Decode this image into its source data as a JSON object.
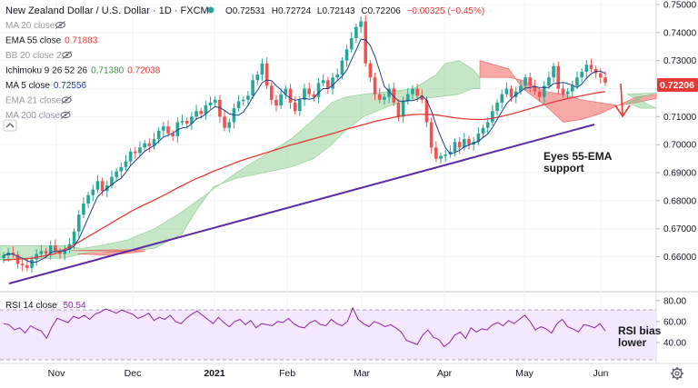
{
  "header": {
    "symbol": "New Zealand Dollar / U.S. Dollar · 1D · FXCM",
    "ohlc": {
      "o_label": "O",
      "o": "0.72531",
      "h_label": "H",
      "h": "0.72724",
      "l_label": "L",
      "l": "0.72143",
      "c_label": "C",
      "c": "0.72206",
      "change": "−0.00325 (−0.45%)"
    }
  },
  "indicators": [
    {
      "label": "MA 20 close",
      "values": [],
      "hidden": true
    },
    {
      "label": "EMA 55 close",
      "values": [
        "0.71883"
      ],
      "color": "#e53935"
    },
    {
      "label": "BB 20 close 2",
      "values": [],
      "hidden": true
    },
    {
      "label": "Ichimoku 9 26 52 26",
      "values": [
        "0.71380",
        "0.72038"
      ],
      "colors": [
        "#388e3c",
        "#e53935"
      ]
    },
    {
      "label": "MA 5 close",
      "values": [
        "0.72556"
      ],
      "color": "#1e3f8f"
    },
    {
      "label": "EMA 21 close",
      "values": [],
      "hidden": true
    },
    {
      "label": "MA 200 close",
      "values": [],
      "hidden": true
    }
  ],
  "price_axis": {
    "ticks": [
      "0.75000",
      "0.74000",
      "0.73000",
      "0.72000",
      "0.71000",
      "0.70000",
      "0.69000",
      "0.68000",
      "0.67000",
      "0.66000"
    ],
    "current_price": "0.72206",
    "current_color": "#e53935"
  },
  "rsi": {
    "label": "RSI 14 close",
    "value": "50.54",
    "color": "#8e24aa",
    "ticks": [
      "80.00",
      "60.00",
      "40.00"
    ],
    "band": [
      30,
      70
    ],
    "series": [
      58,
      57,
      52,
      54,
      49,
      56,
      53,
      51,
      44,
      55,
      63,
      61,
      59,
      65,
      63,
      66,
      62,
      67,
      69,
      72,
      70,
      68,
      71,
      69,
      67,
      63,
      65,
      68,
      61,
      64,
      62,
      66,
      60,
      58,
      63,
      67,
      70,
      66,
      62,
      58,
      64,
      59,
      55,
      60,
      62,
      57,
      61,
      54,
      58,
      57,
      56,
      60,
      59,
      63,
      58,
      55,
      54,
      59,
      61,
      57,
      56,
      62,
      58,
      56,
      60,
      73,
      62,
      58,
      55,
      60,
      58,
      55,
      57,
      54,
      50,
      42,
      40,
      38,
      47,
      52,
      45,
      43,
      36,
      40,
      47,
      50,
      44,
      54,
      50,
      53,
      52,
      57,
      59,
      56,
      61,
      58,
      62,
      66,
      60,
      52,
      55,
      53,
      49,
      58,
      62,
      55,
      53,
      50,
      57,
      56,
      54,
      58,
      51
    ]
  },
  "annotations": {
    "support_text": [
      "Eyes 55-EMA",
      "support"
    ],
    "rsi_text": [
      "RSI bias",
      "lower"
    ]
  },
  "time_axis": {
    "labels": [
      "Nov",
      "Dec",
      "2021",
      "Feb",
      "Mar",
      "Apr",
      "May",
      "Jun"
    ]
  },
  "chart_data": {
    "type": "candlestick",
    "title": "New Zealand Dollar / U.S. Dollar · 1D · FXCM",
    "ylim": [
      0.655,
      0.75
    ],
    "rsi_ylim": [
      20,
      85
    ],
    "close": [
      0.6605,
      0.6615,
      0.6608,
      0.6575,
      0.657,
      0.656,
      0.659,
      0.661,
      0.662,
      0.6612,
      0.664,
      0.662,
      0.661,
      0.6625,
      0.6645,
      0.669,
      0.675,
      0.679,
      0.682,
      0.684,
      0.687,
      0.6835,
      0.6855,
      0.6885,
      0.6905,
      0.692,
      0.694,
      0.6975,
      0.697,
      0.699,
      0.7005,
      0.6995,
      0.702,
      0.705,
      0.7065,
      0.704,
      0.703,
      0.708,
      0.7085,
      0.7075,
      0.71,
      0.712,
      0.711,
      0.714,
      0.715,
      0.716,
      0.71,
      0.706,
      0.708,
      0.713,
      0.7155,
      0.716,
      0.7175,
      0.723,
      0.725,
      0.729,
      0.721,
      0.716,
      0.714,
      0.718,
      0.72,
      0.715,
      0.712,
      0.716,
      0.72,
      0.718,
      0.717,
      0.722,
      0.723,
      0.72,
      0.724,
      0.725,
      0.73,
      0.734,
      0.738,
      0.742,
      0.744,
      0.729,
      0.724,
      0.718,
      0.716,
      0.717,
      0.72,
      0.715,
      0.71,
      0.7155,
      0.718,
      0.72,
      0.7175,
      0.716,
      0.708,
      0.699,
      0.695,
      0.696,
      0.6965,
      0.6975,
      0.701,
      0.699,
      0.702,
      0.7,
      0.701,
      0.704,
      0.706,
      0.708,
      0.712,
      0.715,
      0.718,
      0.72,
      0.717,
      0.719,
      0.721,
      0.724,
      0.721,
      0.719,
      0.717,
      0.721,
      0.724,
      0.728,
      0.72,
      0.718,
      0.719,
      0.721,
      0.724,
      0.726,
      0.7285,
      0.727,
      0.7255,
      0.724,
      0.7221
    ],
    "ema55": [
      0.6588,
      0.659,
      0.6592,
      0.6593,
      0.6595,
      0.66,
      0.6605,
      0.661,
      0.662,
      0.6632,
      0.6645,
      0.666,
      0.6675,
      0.669,
      0.6705,
      0.672,
      0.6735,
      0.675,
      0.6765,
      0.6778,
      0.679,
      0.6802,
      0.6815,
      0.6828,
      0.6842,
      0.6855,
      0.6868,
      0.688,
      0.689,
      0.6902,
      0.6912,
      0.6922,
      0.6932,
      0.6942,
      0.695,
      0.6958,
      0.6966,
      0.6974,
      0.6982,
      0.699,
      0.6998,
      0.7005,
      0.7012,
      0.7019,
      0.7026,
      0.7033,
      0.704,
      0.7048,
      0.7056,
      0.7063,
      0.707,
      0.7077,
      0.7084,
      0.709,
      0.7095,
      0.71,
      0.7104,
      0.7107,
      0.7108,
      0.7108,
      0.7107,
      0.7104,
      0.71,
      0.7096,
      0.7093,
      0.7091,
      0.709,
      0.709,
      0.7093,
      0.7098,
      0.7104,
      0.711,
      0.7117,
      0.7125,
      0.7132,
      0.714,
      0.7147,
      0.7154,
      0.716,
      0.7166,
      0.7171,
      0.7176,
      0.7181,
      0.7186,
      0.7189
    ],
    "tenkan_visible": true
  }
}
